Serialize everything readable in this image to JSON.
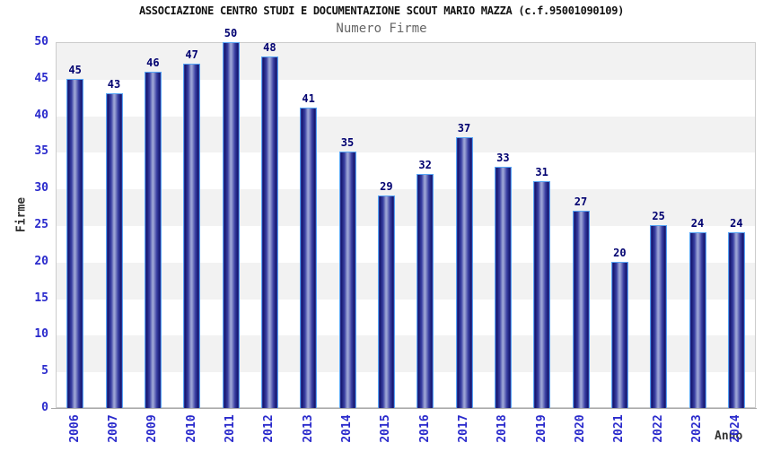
{
  "chart_data": {
    "type": "bar",
    "title": "ASSOCIAZIONE CENTRO STUDI E DOCUMENTAZIONE SCOUT MARIO MAZZA (c.f.95001090109)",
    "subtitle": "Numero Firme",
    "xlabel": "Anno",
    "ylabel": "Firme",
    "categories": [
      "2006",
      "2007",
      "2009",
      "2010",
      "2011",
      "2012",
      "2013",
      "2014",
      "2015",
      "2016",
      "2017",
      "2018",
      "2019",
      "2020",
      "2021",
      "2022",
      "2023",
      "2024"
    ],
    "values": [
      45,
      43,
      46,
      47,
      50,
      48,
      41,
      35,
      29,
      32,
      37,
      33,
      31,
      27,
      20,
      25,
      24,
      24
    ],
    "ylim": [
      0,
      50
    ],
    "yticks": [
      0,
      5,
      10,
      15,
      20,
      25,
      30,
      35,
      40,
      45,
      50
    ],
    "grid": "alternating-horizontal-bands",
    "legend": "none",
    "bar_value_labels": "above-bars",
    "x_tick_rotation": "vertical-bottom-to-top"
  },
  "colors": {
    "title": "#111111",
    "subtitle": "#666666",
    "axis_tick_label": "#2a2acc",
    "value_label": "#000070",
    "axis_title": "#333333",
    "bar_edge_dark": "#15176f",
    "bar_mid": "#3a40a3",
    "bar_center_light": "#9aa2d4",
    "bar_border": "#58a6f5",
    "band_gray": "#f2f2f2",
    "band_white": "#ffffff",
    "plot_border": "#cccccc",
    "axis_line": "#aaaaaa"
  }
}
